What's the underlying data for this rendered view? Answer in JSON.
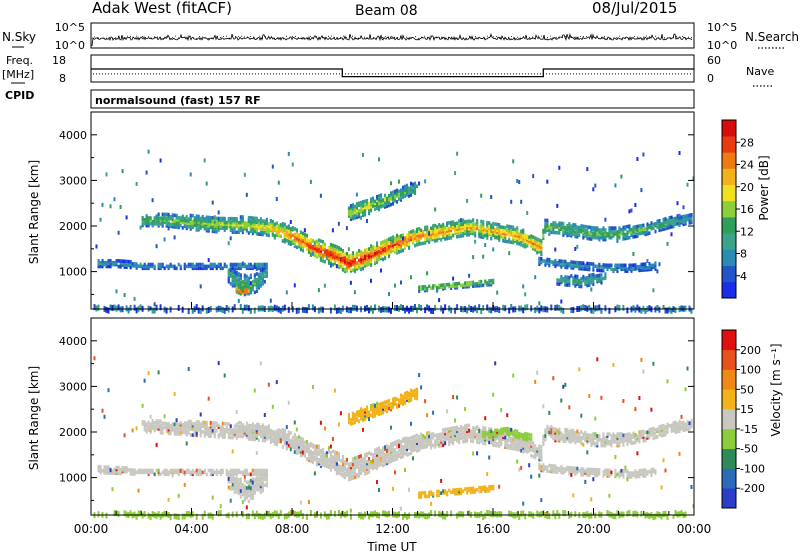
{
  "header": {
    "station": "Adak West (fitACF)",
    "beam": "Beam 08",
    "date": "08/Jul/2015"
  },
  "strip_labels": {
    "nsky": "N.Sky",
    "nsearch": "N.Search",
    "freq": "Freq.",
    "freq_unit": "[MHz]",
    "nave": "Nave",
    "cpid": "CPID",
    "cpid_value": "normalsound (fast) 157 RF"
  },
  "noise_panel": {
    "left_ticks": [
      "10^5",
      "10^0"
    ],
    "right_ticks": [
      "10^5",
      "10^0"
    ]
  },
  "freq_panel": {
    "left_ticks": [
      "18",
      "8"
    ],
    "right_ticks": [
      "60",
      "0"
    ],
    "freq_segments": [
      {
        "start_hour": 0,
        "end_hour": 10,
        "freq": 12.8
      },
      {
        "start_hour": 10,
        "end_hour": 18,
        "freq": 10.0
      },
      {
        "start_hour": 18,
        "end_hour": 24,
        "freq": 12.8
      }
    ],
    "nave_value": 18
  },
  "chart_data": [
    {
      "type": "heatmap",
      "name": "power",
      "ylabel": "Slant Range [km]",
      "ylim": [
        180,
        4500
      ],
      "yticks": [
        1000,
        2000,
        3000,
        4000
      ],
      "xlim": [
        0,
        24
      ],
      "colorbar": {
        "label": "Power [dB]",
        "ticks": [
          "4",
          "8",
          "12",
          "16",
          "20",
          "24",
          "28"
        ],
        "colors": [
          "#1a2ee6",
          "#2255c8",
          "#2a8cb4",
          "#3aa38a",
          "#2f9e5a",
          "#8bcf3a",
          "#f0e020",
          "#f2b21a",
          "#ee7a14",
          "#e83c10",
          "#d80c0c"
        ]
      },
      "bands": [
        {
          "t": [
            2.0,
            3.0,
            4.0,
            5.0,
            6.0,
            7.0,
            8.0,
            9.0,
            9.8,
            10.2,
            11.0,
            12.0,
            13.0,
            14.0,
            15.0,
            16.0,
            17.0,
            17.9,
            18.0,
            19.0,
            20.0,
            21.0,
            22.0,
            23.0,
            23.9
          ],
          "r": [
            2150,
            2150,
            2100,
            2050,
            2050,
            2000,
            1800,
            1500,
            1350,
            1200,
            1350,
            1600,
            1800,
            1900,
            2000,
            1900,
            1800,
            1550,
            2000,
            1950,
            1850,
            1850,
            1950,
            2100,
            2200
          ],
          "w": [
            120,
            130,
            150,
            160,
            170,
            180,
            200,
            210,
            220,
            230,
            220,
            200,
            180,
            170,
            170,
            170,
            170,
            160,
            150,
            140,
            130,
            130,
            120,
            110,
            100
          ],
          "peak": [
            0.45,
            0.5,
            0.5,
            0.55,
            0.55,
            0.65,
            0.8,
            0.95,
            0.95,
            0.95,
            0.95,
            0.9,
            0.8,
            0.75,
            0.7,
            0.7,
            0.75,
            0.8,
            0.5,
            0.45,
            0.45,
            0.45,
            0.45,
            0.4,
            0.3
          ]
        },
        {
          "t": [
            0.2,
            1.0,
            2.0,
            3.0,
            4.0,
            5.0,
            6.0,
            7.0
          ],
          "r": [
            1200,
            1200,
            1150,
            1150,
            1150,
            1150,
            1150,
            1150
          ],
          "w": [
            70,
            70,
            60,
            60,
            60,
            60,
            60,
            60
          ],
          "peak": [
            0.3,
            0.3,
            0.3,
            0.25,
            0.25,
            0.25,
            0.3,
            0.3
          ]
        },
        {
          "t": [
            5.4,
            5.8,
            6.2,
            6.6,
            7.0
          ],
          "r": [
            1000,
            800,
            700,
            800,
            1000
          ],
          "w": [
            180,
            200,
            220,
            200,
            180
          ],
          "peak": [
            0.3,
            0.4,
            0.45,
            0.4,
            0.3
          ]
        },
        {
          "t": [
            5.7,
            6.0,
            6.3
          ],
          "r": [
            650,
            580,
            620
          ],
          "w": [
            60,
            70,
            60
          ],
          "peak": [
            0.95,
            0.95,
            0.9
          ]
        },
        {
          "t": [
            13.0,
            14.0,
            15.0,
            16.0
          ],
          "r": [
            650,
            700,
            750,
            800
          ],
          "w": [
            60,
            60,
            60,
            60
          ],
          "peak": [
            0.55,
            0.6,
            0.55,
            0.5
          ]
        },
        {
          "t": [
            10.2,
            11.0,
            12.0,
            13.0
          ],
          "r": [
            2300,
            2450,
            2650,
            2900
          ],
          "w": [
            150,
            160,
            140,
            120
          ],
          "peak": [
            0.55,
            0.6,
            0.5,
            0.4
          ]
        },
        {
          "t": [
            17.8,
            18.5,
            19.5,
            20.5,
            21.5,
            22.5
          ],
          "r": [
            1250,
            1200,
            1150,
            1100,
            1100,
            1150
          ],
          "w": [
            70,
            70,
            70,
            70,
            70,
            70
          ],
          "peak": [
            0.3,
            0.3,
            0.3,
            0.3,
            0.25,
            0.25
          ]
        },
        {
          "t": [
            18.5,
            19.5,
            20.5
          ],
          "r": [
            850,
            800,
            900
          ],
          "w": [
            100,
            110,
            100
          ],
          "peak": [
            0.35,
            0.4,
            0.35
          ]
        }
      ]
    },
    {
      "type": "heatmap",
      "name": "velocity",
      "ylabel": "Slant Range [km]",
      "ylim": [
        180,
        4500
      ],
      "yticks": [
        1000,
        2000,
        3000,
        4000
      ],
      "xlim": [
        0,
        24
      ],
      "xticks": [
        "00:00",
        "04:00",
        "08:00",
        "12:00",
        "16:00",
        "20:00",
        "00:00"
      ],
      "xlabel": "Time UT",
      "colorbar": {
        "label": "Velocity [m s⁻¹]",
        "ticks": [
          "200",
          "100",
          "50",
          "15",
          "-15",
          "-50",
          "-100",
          "-200"
        ],
        "colors": [
          "#2b3ec8",
          "#2a6ab8",
          "#2f8a5a",
          "#8ccd3c",
          "#c8c8c0",
          "#f2b21a",
          "#ee8a14",
          "#e8501c",
          "#e01010"
        ]
      },
      "bands": [
        {
          "t": [
            2.0,
            4.0,
            6.0,
            7.0,
            8.0,
            9.0,
            9.8,
            10.2,
            11.0,
            12.0,
            13.0,
            14.0,
            15.0,
            16.0,
            17.0,
            17.9,
            18.0,
            19.0,
            20.0,
            21.0,
            22.0,
            23.0,
            23.9
          ],
          "r": [
            2150,
            2100,
            2050,
            2000,
            1800,
            1500,
            1350,
            1200,
            1350,
            1600,
            1800,
            1900,
            2000,
            1900,
            1800,
            1550,
            2000,
            1950,
            1850,
            1850,
            1950,
            2100,
            2200
          ],
          "w": [
            120,
            150,
            170,
            180,
            200,
            210,
            220,
            230,
            220,
            200,
            180,
            170,
            170,
            170,
            170,
            160,
            150,
            140,
            130,
            130,
            120,
            110,
            100
          ],
          "v": "grey"
        },
        {
          "t": [
            0.2,
            2.0,
            4.0,
            6.0,
            7.0
          ],
          "r": [
            1200,
            1150,
            1150,
            1150,
            1150
          ],
          "w": [
            70,
            60,
            60,
            60,
            60
          ],
          "v": "grey"
        },
        {
          "t": [
            5.4,
            6.2,
            7.0
          ],
          "r": [
            1000,
            700,
            1000
          ],
          "w": [
            180,
            220,
            180
          ],
          "v": "grey"
        },
        {
          "t": [
            13.0,
            14.0,
            15.0,
            16.0
          ],
          "r": [
            650,
            700,
            750,
            800
          ],
          "w": [
            60,
            60,
            60,
            60
          ],
          "v": "orange"
        },
        {
          "t": [
            10.2,
            11.0,
            12.0,
            13.0
          ],
          "r": [
            2300,
            2450,
            2650,
            2900
          ],
          "w": [
            120,
            130,
            120,
            100
          ],
          "v": "orange"
        },
        {
          "t": [
            15.5,
            16.5,
            17.5
          ],
          "r": [
            1950,
            2050,
            1900
          ],
          "w": [
            80,
            80,
            80
          ],
          "v": "green"
        },
        {
          "t": [
            17.8,
            19.5,
            21.5,
            22.5
          ],
          "r": [
            1250,
            1150,
            1100,
            1150
          ],
          "w": [
            70,
            70,
            70,
            70
          ],
          "v": "grey"
        }
      ]
    }
  ]
}
